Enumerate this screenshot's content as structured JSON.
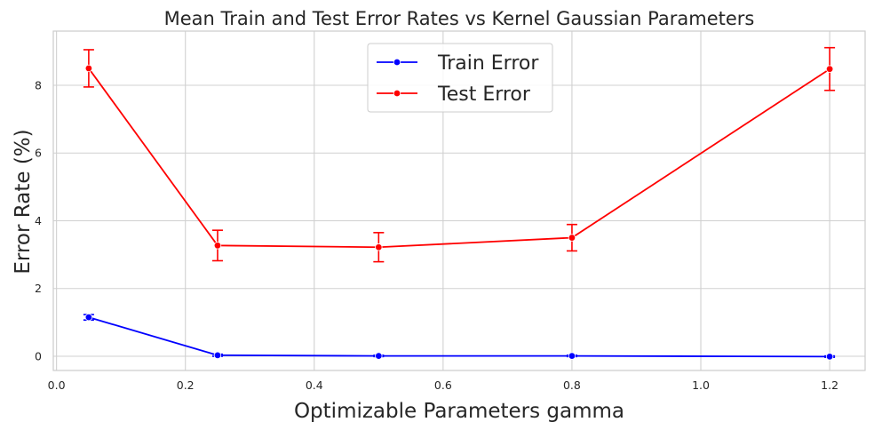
{
  "chart_data": {
    "type": "line",
    "title": "Mean Train and Test Error Rates vs Kernel Gaussian Parameters",
    "xlabel": "Optimizable Parameters gamma",
    "ylabel": "Error Rate (%)",
    "xlim": [
      -0.005,
      1.255
    ],
    "ylim": [
      -0.42,
      9.6
    ],
    "xticks": [
      0.0,
      0.2,
      0.4,
      0.6,
      0.8,
      1.0,
      1.2
    ],
    "xtick_labels": [
      "0.0",
      "0.2",
      "0.4",
      "0.6",
      "0.8",
      "1.0",
      "1.2"
    ],
    "yticks": [
      0,
      2,
      4,
      6,
      8
    ],
    "ytick_labels": [
      "0",
      "2",
      "4",
      "6",
      "8"
    ],
    "grid": true,
    "legend_position": "top-center",
    "x": [
      0.05,
      0.25,
      0.5,
      0.8,
      1.2
    ],
    "series": [
      {
        "name": "Train Error",
        "color": "#0000ff",
        "values": [
          1.15,
          0.03,
          0.01,
          0.01,
          -0.01
        ],
        "errors": [
          0.08,
          0.03,
          0.02,
          0.02,
          0.02
        ]
      },
      {
        "name": "Test Error",
        "color": "#ff0000",
        "values": [
          8.5,
          3.27,
          3.22,
          3.5,
          8.48
        ],
        "errors": [
          0.55,
          0.45,
          0.43,
          0.39,
          0.63
        ]
      }
    ]
  }
}
